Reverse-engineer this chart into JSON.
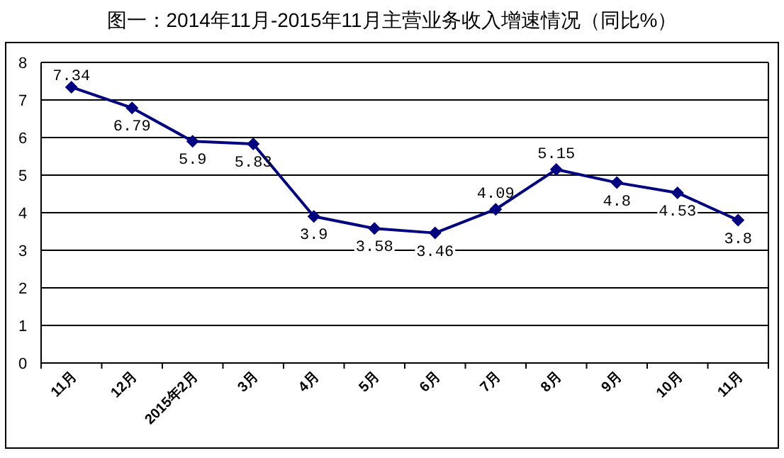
{
  "chart_data": {
    "type": "line",
    "title": "图一：2014年11月-2015年11月主营业务收入增速情况（同比%）",
    "categories": [
      "11月",
      "12月",
      "2015年2月",
      "3月",
      "4月",
      "5月",
      "6月",
      "7月",
      "8月",
      "9月",
      "10月",
      "11月"
    ],
    "series": [
      {
        "color": "#000080",
        "values": [
          7.34,
          6.79,
          5.9,
          5.83,
          3.9,
          3.58,
          3.46,
          4.09,
          5.15,
          4.8,
          4.53,
          3.8
        ]
      }
    ],
    "ylim": [
      0,
      8
    ],
    "yticks": [
      0,
      1,
      2,
      3,
      4,
      5,
      6,
      7,
      8
    ],
    "grid": "y",
    "marker": "diamond",
    "line_style": "solid",
    "data_labels": true
  }
}
